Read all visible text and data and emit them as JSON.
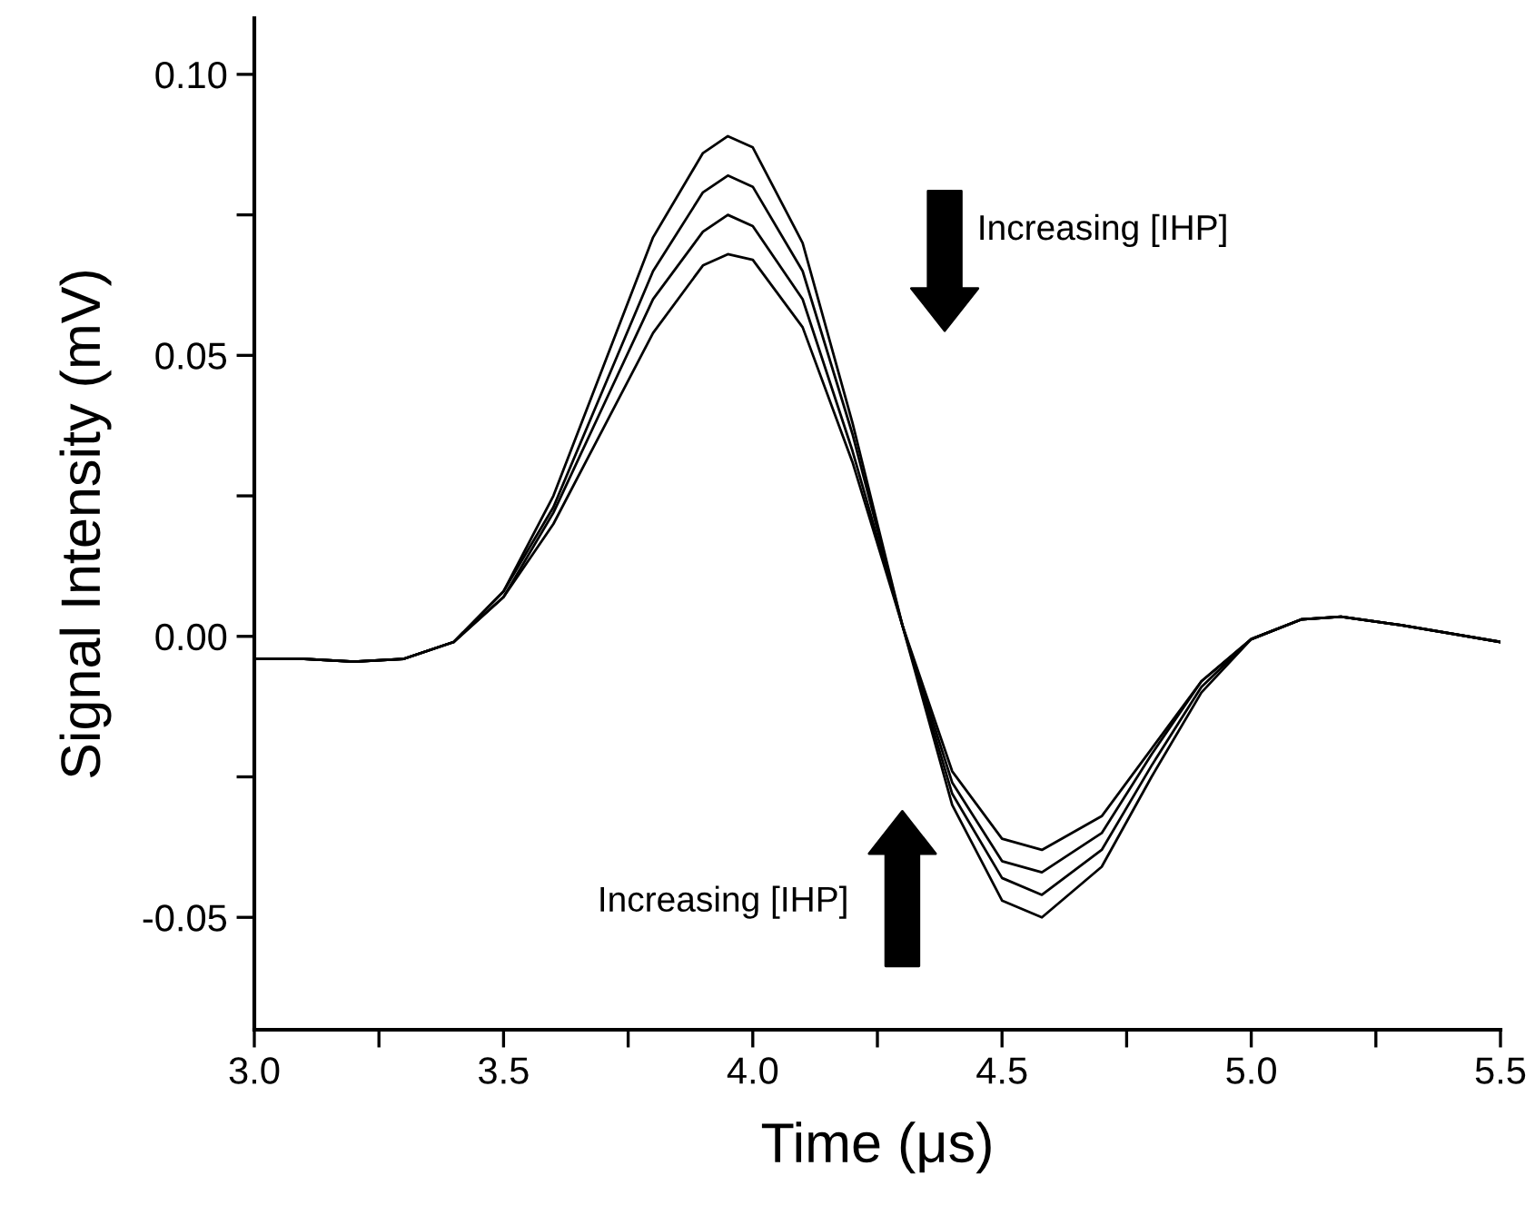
{
  "chart_data": {
    "type": "line",
    "xlabel": "Time (μs)",
    "ylabel": "Signal Intensity (mV)",
    "x": [
      3.0,
      3.1,
      3.2,
      3.3,
      3.4,
      3.5,
      3.6,
      3.7,
      3.8,
      3.9,
      3.95,
      4.0,
      4.1,
      4.2,
      4.3,
      4.4,
      4.5,
      4.58,
      4.7,
      4.8,
      4.9,
      5.0,
      5.1,
      5.18,
      5.3,
      5.4,
      5.5
    ],
    "series": [
      {
        "color": "#000000",
        "values": [
          -0.004,
          -0.004,
          -0.0045,
          -0.004,
          -0.001,
          0.008,
          0.025,
          0.048,
          0.071,
          0.086,
          0.089,
          0.087,
          0.07,
          0.038,
          0.002,
          -0.03,
          -0.047,
          -0.05,
          -0.041,
          -0.025,
          -0.01,
          -0.0005,
          0.003,
          0.0035,
          0.002,
          0.0005,
          -0.001
        ]
      },
      {
        "color": "#000000",
        "values": [
          -0.004,
          -0.004,
          -0.0045,
          -0.004,
          -0.001,
          0.008,
          0.023,
          0.044,
          0.065,
          0.079,
          0.082,
          0.08,
          0.065,
          0.036,
          0.002,
          -0.028,
          -0.043,
          -0.046,
          -0.038,
          -0.023,
          -0.009,
          -0.0005,
          0.003,
          0.0035,
          0.002,
          0.0005,
          -0.001
        ]
      },
      {
        "color": "#000000",
        "values": [
          -0.004,
          -0.004,
          -0.0045,
          -0.004,
          -0.001,
          0.007,
          0.022,
          0.041,
          0.06,
          0.072,
          0.075,
          0.073,
          0.06,
          0.033,
          0.002,
          -0.026,
          -0.04,
          -0.042,
          -0.035,
          -0.021,
          -0.008,
          -0.0005,
          0.003,
          0.0035,
          0.002,
          0.0005,
          -0.001
        ]
      },
      {
        "color": "#000000",
        "values": [
          -0.004,
          -0.004,
          -0.0045,
          -0.004,
          -0.001,
          0.007,
          0.02,
          0.037,
          0.054,
          0.066,
          0.068,
          0.067,
          0.055,
          0.031,
          0.002,
          -0.024,
          -0.036,
          -0.038,
          -0.032,
          -0.02,
          -0.008,
          -0.0005,
          0.003,
          0.0035,
          0.002,
          0.0005,
          -0.001
        ]
      }
    ],
    "xlim": [
      3.0,
      5.5
    ],
    "ylim": [
      -0.07,
      0.11
    ],
    "xticks": [
      {
        "value": 3.0,
        "label": "3.0"
      },
      {
        "value": 3.25,
        "label": null
      },
      {
        "value": 3.5,
        "label": "3.5"
      },
      {
        "value": 3.75,
        "label": null
      },
      {
        "value": 4.0,
        "label": "4.0"
      },
      {
        "value": 4.25,
        "label": null
      },
      {
        "value": 4.5,
        "label": "4.5"
      },
      {
        "value": 4.75,
        "label": null
      },
      {
        "value": 5.0,
        "label": "5.0"
      },
      {
        "value": 5.25,
        "label": null
      },
      {
        "value": 5.5,
        "label": "5.5"
      }
    ],
    "yticks": [
      {
        "value": -0.05,
        "label": "-0.05"
      },
      {
        "value": -0.025,
        "label": null
      },
      {
        "value": 0.0,
        "label": "0.00"
      },
      {
        "value": 0.025,
        "label": null
      },
      {
        "value": 0.05,
        "label": "0.05"
      },
      {
        "value": 0.075,
        "label": null
      },
      {
        "value": 0.1,
        "label": "0.10"
      }
    ],
    "annotations": [
      "Increasing [IHP]",
      "Increasing [IHP]"
    ],
    "grid": false,
    "legend": false,
    "line_style": "solid",
    "marker": "none"
  }
}
